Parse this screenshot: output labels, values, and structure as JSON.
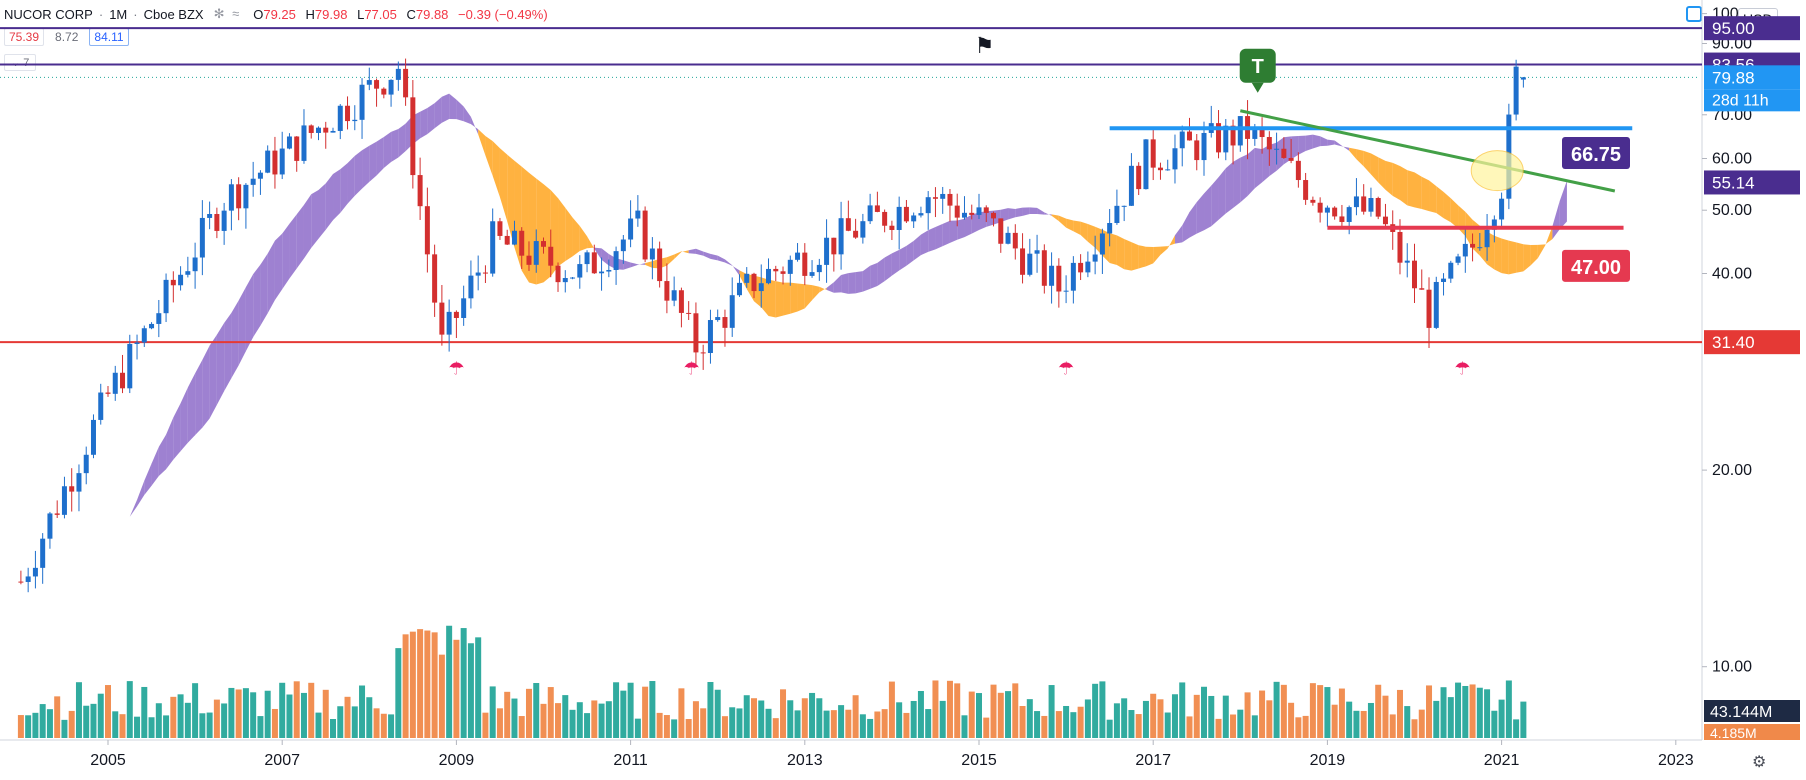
{
  "header": {
    "symbol": "NUCOR CORP",
    "interval": "1M",
    "exchange": "Cboe BZX",
    "ohlc": [
      {
        "k": "O",
        "v": "79.25"
      },
      {
        "k": "H",
        "v": "79.98"
      },
      {
        "k": "L",
        "v": "77.05"
      },
      {
        "k": "C",
        "v": "79.88"
      }
    ],
    "change": "−0.39 (−0.49%)"
  },
  "indicator_values": [
    "75.39",
    "8.72",
    "84.11"
  ],
  "collapse_count": "7",
  "currency": "USD",
  "colors": {
    "up": "#26a69a",
    "down": "#ef5350",
    "cloud_bull": "#7e57c2",
    "cloud_bear": "#ff9800",
    "resistance": "#4a2d8f",
    "support": "#e53935",
    "channel": "#2196f3",
    "trend": "#43a047",
    "zone": "#e53950"
  },
  "chart_data": {
    "type": "candlestick",
    "title": "NUCOR CORP · 1M · Cboe BZX",
    "x_ticks": [
      "2005",
      "2007",
      "2009",
      "2011",
      "2013",
      "2015",
      "2017",
      "2019",
      "2021",
      "2023"
    ],
    "y_ticks": [
      "10.00",
      "20.00",
      "40.00",
      "50.00",
      "60.00",
      "70.00",
      "90.00",
      "100"
    ],
    "ylim": [
      8,
      102
    ],
    "price_labels": [
      {
        "value": 95.0,
        "text": "95.00",
        "kind": "line"
      },
      {
        "value": 83.56,
        "text": "83.56",
        "kind": "line"
      },
      {
        "value": 79.88,
        "text": "79.88",
        "kind": "last"
      },
      {
        "value": 55.14,
        "text": "55.14",
        "kind": "indicator"
      },
      {
        "value": 31.4,
        "text": "31.40",
        "kind": "support"
      }
    ],
    "countdown": "28d 11h",
    "annotations": [
      {
        "text": "66.75",
        "value": 66.75,
        "kind": "channel"
      },
      {
        "text": "47.00",
        "value": 47.0,
        "kind": "zone"
      },
      {
        "text": "T",
        "kind": "flag"
      }
    ],
    "volume_labels": [
      {
        "text": "43.144M"
      },
      {
        "text": "4.185M"
      }
    ],
    "horizontal_lines": [
      {
        "value": 95.0,
        "color": "#4a2d8f"
      },
      {
        "value": 83.56,
        "color": "#4a2d8f"
      },
      {
        "value": 31.4,
        "color": "#e53935"
      }
    ],
    "key_points": [
      {
        "date": "2004-01",
        "close": 13.5
      },
      {
        "date": "2005-01",
        "close": 26
      },
      {
        "date": "2006-05",
        "close": 52
      },
      {
        "date": "2007-06",
        "close": 67
      },
      {
        "date": "2008-05",
        "close": 83
      },
      {
        "date": "2008-11",
        "close": 31
      },
      {
        "date": "2009-06",
        "close": 45
      },
      {
        "date": "2010-06",
        "close": 40
      },
      {
        "date": "2011-02",
        "close": 47
      },
      {
        "date": "2011-10",
        "close": 31
      },
      {
        "date": "2012-06",
        "close": 39
      },
      {
        "date": "2014-06",
        "close": 53
      },
      {
        "date": "2015-02",
        "close": 48
      },
      {
        "date": "2015-12",
        "close": 38
      },
      {
        "date": "2016-12",
        "close": 60
      },
      {
        "date": "2018-02",
        "close": 66
      },
      {
        "date": "2018-12",
        "close": 52
      },
      {
        "date": "2019-08",
        "close": 49
      },
      {
        "date": "2020-03",
        "close": 35
      },
      {
        "date": "2020-09",
        "close": 44
      },
      {
        "date": "2021-01",
        "close": 55
      },
      {
        "date": "2021-03",
        "close": 80
      },
      {
        "date": "2021-04",
        "close": 79.88
      }
    ]
  }
}
